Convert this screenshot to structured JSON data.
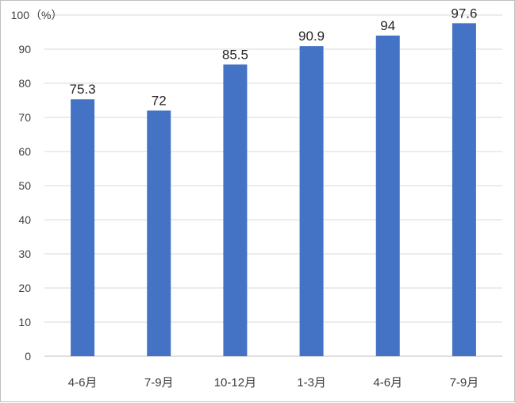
{
  "chart_data": {
    "type": "bar",
    "categories": [
      "4-6月",
      "7-9月",
      "10-12月",
      "1-3月",
      "4-6月",
      "7-9月"
    ],
    "values": [
      75.3,
      72,
      85.5,
      90.9,
      94,
      97.6
    ],
    "data_labels": [
      "75.3",
      "72",
      "85.5",
      "90.9",
      "94",
      "97.6"
    ],
    "unit": "（%）",
    "ylim": [
      0,
      100
    ],
    "yticks": [
      0,
      10,
      20,
      30,
      40,
      50,
      60,
      70,
      80,
      90,
      100
    ],
    "grid": true,
    "legend": "none",
    "bar_color": "#4472C4"
  }
}
